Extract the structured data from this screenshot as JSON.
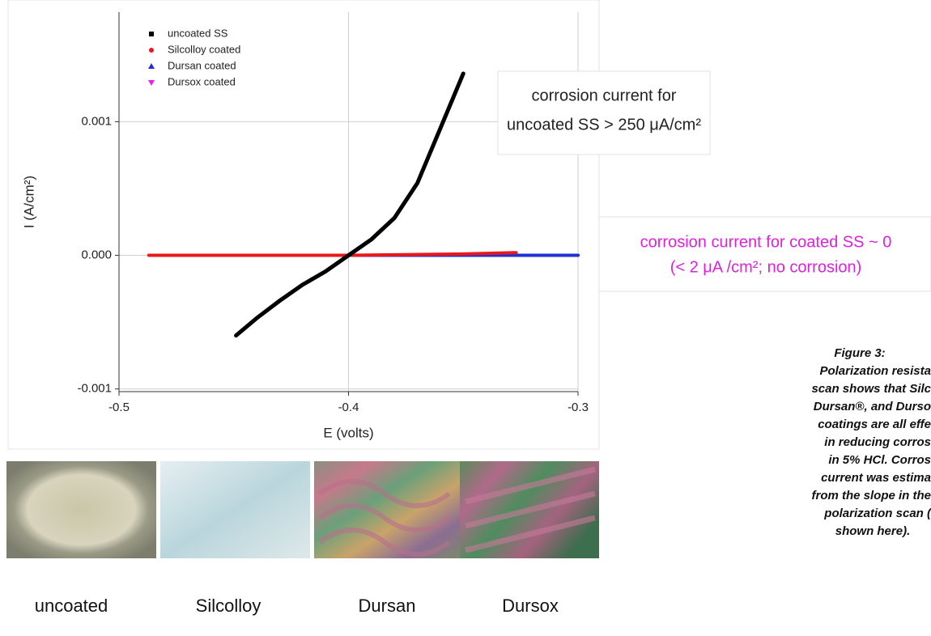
{
  "chart_data": {
    "type": "line",
    "x_label": "E (volts)",
    "y_label": "I (A/cm²)",
    "xlim": [
      -0.5,
      -0.3
    ],
    "xticks": [
      -0.5,
      -0.4,
      -0.3
    ],
    "ylim": [
      -0.00102,
      0.00182
    ],
    "yticks": [
      {
        "value": 0.001,
        "label": "0.001"
      },
      {
        "value": 0,
        "label": "0.000"
      },
      {
        "value": -0.001,
        "label": "-0.001"
      }
    ],
    "grid": true,
    "series": [
      {
        "name": "uncoated SS",
        "color": "#000000",
        "marker": "square",
        "x": [
          -0.449,
          -0.44,
          -0.43,
          -0.42,
          -0.41,
          -0.4,
          -0.39,
          -0.38,
          -0.37,
          -0.36,
          -0.35
        ],
        "values": [
          -0.0006,
          -0.00047,
          -0.00034,
          -0.00022,
          -0.00012,
          0,
          0.00012,
          0.00028,
          0.00054,
          0.00095,
          0.00136
        ]
      },
      {
        "name": "Silcolloy coated",
        "color": "#e8181b",
        "marker": "circle",
        "x": [
          -0.487,
          -0.4,
          -0.35,
          -0.327
        ],
        "values": [
          0,
          0,
          1e-05,
          2e-05
        ]
      },
      {
        "name": "Dursan coated",
        "color": "#1f2fd6",
        "marker": "triangle-up",
        "x": [
          -0.477,
          -0.4,
          -0.3
        ],
        "values": [
          0,
          0,
          0
        ]
      },
      {
        "name": "Dursox coated",
        "color": "#ee1cee",
        "marker": "triangle-down",
        "x": [
          -0.45,
          -0.4,
          -0.3
        ],
        "values": [
          0,
          0,
          0
        ]
      }
    ],
    "annotations": [
      {
        "lines": [
          "corrosion current for",
          "uncoated SS > 250 μA/cm²"
        ],
        "color": "#222222"
      },
      {
        "lines": [
          "corrosion current for coated SS ~ 0",
          "(< 2 μA /cm²; no corrosion)"
        ],
        "color": "#e020e0"
      }
    ]
  },
  "photos": [
    "uncoated",
    "Silcolloy",
    "Dursan",
    "Dursox"
  ],
  "caption": {
    "title": "Figure 3:",
    "lines": [
      "Polarization resista",
      "scan shows that Silc",
      "Dursan®, and Durso",
      "coatings are all effe",
      "in reducing corros",
      "in 5% HCl.  Corros",
      "current was estima",
      "from the slope in the",
      "polarization scan (",
      "shown here)."
    ]
  }
}
